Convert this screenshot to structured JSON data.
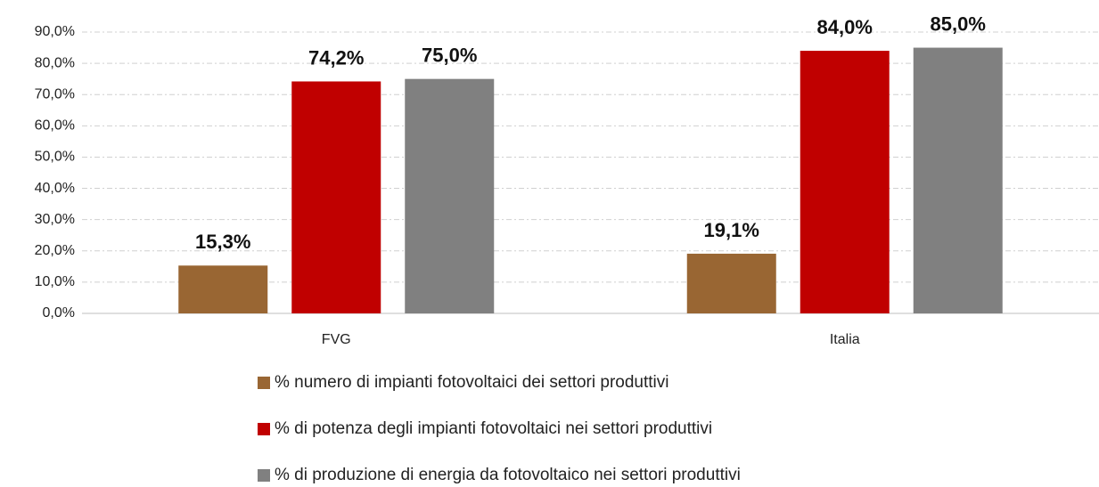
{
  "chart_data": {
    "type": "bar",
    "categories": [
      "FVG",
      "Italia"
    ],
    "series": [
      {
        "name": "% numero di impianti fotovoltaici dei settori produttivi",
        "color": "#996633",
        "values": [
          15.3,
          19.1
        ],
        "value_labels": [
          "15,3%",
          "19,1%"
        ]
      },
      {
        "name": "% di potenza degli impianti fotovoltaici nei settori produttivi",
        "color": "#c00000",
        "values": [
          74.2,
          84.0
        ],
        "value_labels": [
          "74,2%",
          "84,0%"
        ]
      },
      {
        "name": "% di produzione di energia da fotovoltaico nei settori produttivi",
        "color": "#808080",
        "values": [
          75.0,
          85.0
        ],
        "value_labels": [
          "75,0%",
          "85,0%"
        ]
      }
    ],
    "ylim": [
      0,
      90
    ],
    "yticks": [
      {
        "value": 0,
        "label": "0,0%"
      },
      {
        "value": 10,
        "label": "10,0%"
      },
      {
        "value": 20,
        "label": "20,0%"
      },
      {
        "value": 30,
        "label": "30,0%"
      },
      {
        "value": 40,
        "label": "40,0%"
      },
      {
        "value": 50,
        "label": "50,0%"
      },
      {
        "value": 60,
        "label": "60,0%"
      },
      {
        "value": 70,
        "label": "70,0%"
      },
      {
        "value": 80,
        "label": "80,0%"
      },
      {
        "value": 90,
        "label": "90,0%"
      }
    ],
    "grid": true,
    "legend": "bottom"
  }
}
